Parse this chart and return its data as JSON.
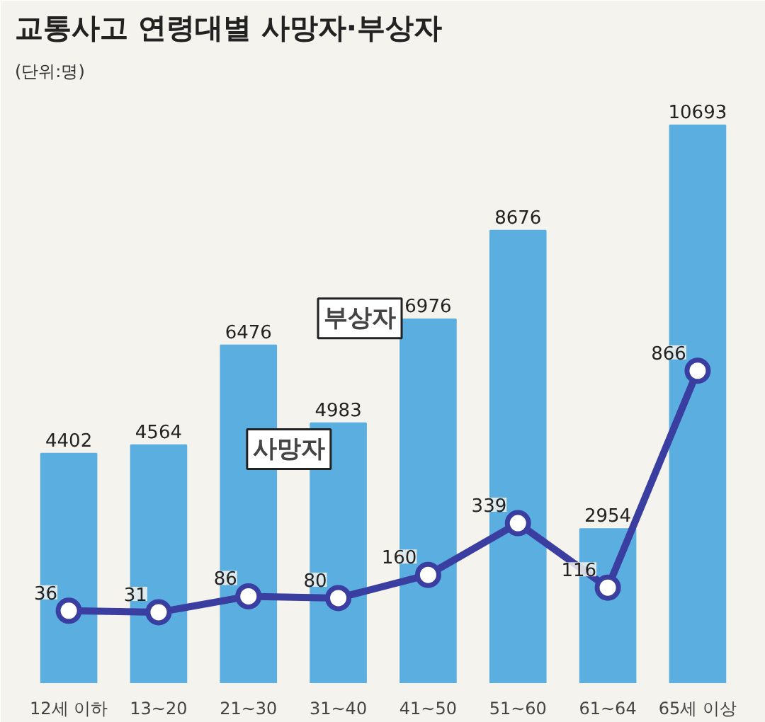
{
  "chart_data": {
    "type": "bar",
    "title": "교통사고 연령대별 사망자·부상자",
    "subtitle": "(단위:명)",
    "categories": [
      "12세 이하",
      "13~20",
      "21~30",
      "31~40",
      "41~50",
      "51~60",
      "61~64",
      "65세 이상"
    ],
    "series": [
      {
        "name": "부상자",
        "color": "#5aaee0",
        "values": [
          4402,
          4564,
          6476,
          4983,
          6976,
          8676,
          2954,
          10693
        ]
      },
      {
        "name": "사망자",
        "type": "line",
        "axis": "y2",
        "color": "#3a3ea0",
        "marker": "circle",
        "values": [
          36,
          31,
          86,
          80,
          160,
          339,
          116,
          866
        ]
      }
    ],
    "ylim": [
      0,
      11400
    ],
    "y2lim": [
      -214,
      1842
    ],
    "data_labels": true,
    "legend": false,
    "grid": false
  }
}
